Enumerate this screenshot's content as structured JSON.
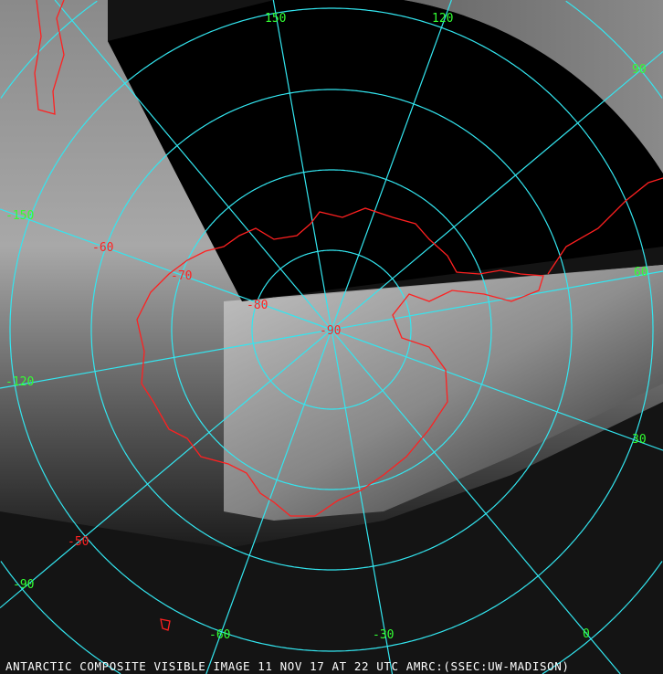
{
  "caption": "ANTARCTIC COMPOSITE VISIBLE IMAGE 11 NOV 17 AT 22 UTC AMRC:(SSEC:UW-MADISON)",
  "projection": "polar-stereographic-south",
  "colors": {
    "graticule": "#33e6f0",
    "coastline": "#ff2020",
    "longitude_labels": "#33ff33",
    "latitude_labels": "#ff2222",
    "no_data": "#000000"
  },
  "longitude_labels": [
    "150",
    "120",
    "90",
    "60",
    "30",
    "0",
    "-30",
    "-60",
    "-90",
    "-120",
    "-150"
  ],
  "latitude_labels": [
    "-90",
    "-80",
    "-70",
    "-60",
    "-50"
  ]
}
